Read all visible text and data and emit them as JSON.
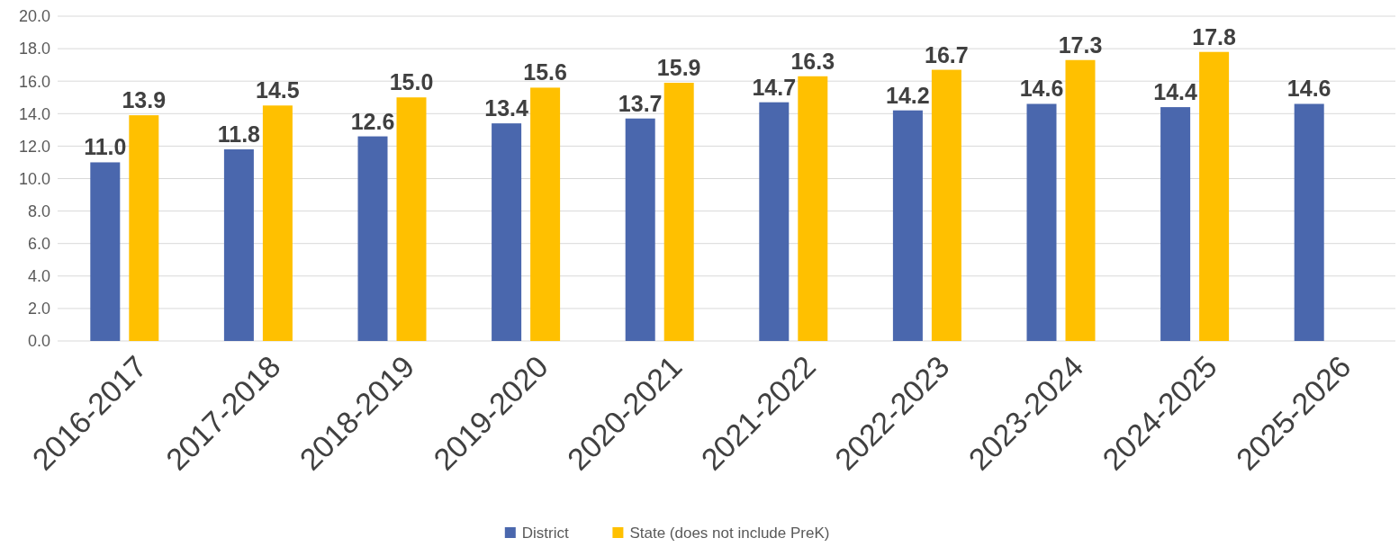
{
  "chart_data": {
    "type": "bar",
    "categories": [
      "2016-2017",
      "2017-2018",
      "2018-2019",
      "2019-2020",
      "2020-2021",
      "2021-2022",
      "2022-2023",
      "2023-2024",
      "2024-2025",
      "2025-2026"
    ],
    "series": [
      {
        "name": "District",
        "color": "#4a67ad",
        "values": [
          11.0,
          11.8,
          12.6,
          13.4,
          13.7,
          14.7,
          14.2,
          14.6,
          14.4,
          14.6
        ],
        "value_labels": [
          "11.0",
          "11.8",
          "12.6",
          "13.4",
          "13.7",
          "14.7",
          "14.2",
          "14.6",
          "14.4",
          "14.6"
        ]
      },
      {
        "name": "State (does not include PreK)",
        "color": "#ffc000",
        "values": [
          13.9,
          14.5,
          15.0,
          15.6,
          15.9,
          16.3,
          16.7,
          17.3,
          17.8,
          null
        ],
        "value_labels": [
          "13.9",
          "14.5",
          "15.0",
          "15.6",
          "15.9",
          "16.3",
          "16.7",
          "17.3",
          "17.8",
          null
        ]
      }
    ],
    "ylim": [
      0,
      20
    ],
    "yticks": [
      {
        "value": 0,
        "label": "0.0"
      },
      {
        "value": 2,
        "label": "2.0"
      },
      {
        "value": 4,
        "label": "4.0"
      },
      {
        "value": 6,
        "label": "6.0"
      },
      {
        "value": 8,
        "label": "8.0"
      },
      {
        "value": 10,
        "label": "10.0"
      },
      {
        "value": 12,
        "label": "12.0"
      },
      {
        "value": 14,
        "label": "14.0"
      },
      {
        "value": 16,
        "label": "16.0"
      },
      {
        "value": 18,
        "label": "18.0"
      },
      {
        "value": 20,
        "label": "20.0"
      }
    ],
    "grid": "y",
    "legend": "bottom"
  }
}
